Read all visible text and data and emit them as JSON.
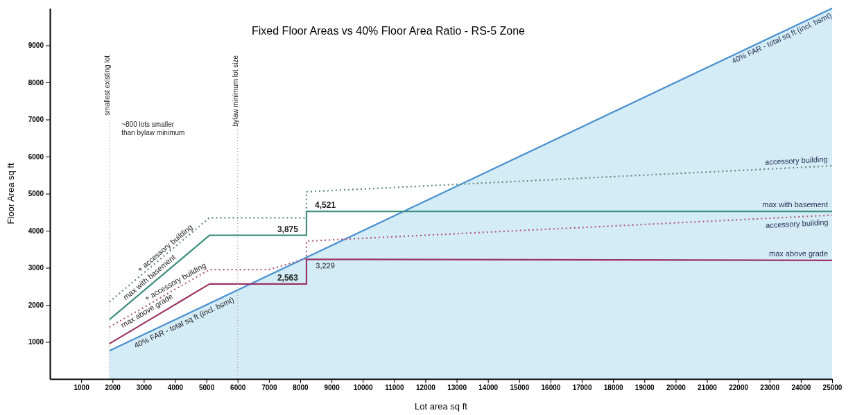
{
  "chart_data": {
    "type": "line",
    "title": "Fixed Floor Areas vs 40% Floor Area Ratio  -  RS-5 Zone",
    "xlabel": "Lot area    sq ft",
    "ylabel": "Floor Area    sq ft",
    "xlim": [
      0,
      25000
    ],
    "ylim": [
      0,
      10000
    ],
    "xticks": [
      1000,
      2000,
      3000,
      4000,
      5000,
      6000,
      7000,
      8000,
      9000,
      10000,
      11000,
      12000,
      13000,
      14000,
      15000,
      16000,
      17000,
      18000,
      19000,
      20000,
      21000,
      22000,
      23000,
      24000,
      25000
    ],
    "yticks": [
      1000,
      2000,
      3000,
      4000,
      5000,
      6000,
      7000,
      8000,
      9000
    ],
    "grid": false,
    "marker": "none",
    "series": [
      {
        "name": "40% FAR - total sq ft (incl. bsmt)",
        "type": "area",
        "color": "#4a8fd0",
        "x": [
          1900,
          25000
        ],
        "values": [
          760,
          10000
        ]
      },
      {
        "name": "accessory building",
        "color": "#5f8878",
        "line_style": "dotted",
        "x": [
          1900,
          5100,
          8200,
          8200,
          25000
        ],
        "values": [
          2080,
          4350,
          4350,
          5050,
          5750
        ]
      },
      {
        "name": "max with basement",
        "color": "#3f8f80",
        "x": [
          1900,
          5100,
          8200,
          8200,
          25000
        ],
        "values": [
          1600,
          3875,
          3875,
          4521,
          4521
        ]
      },
      {
        "name": "accessory building",
        "color": "#b05878",
        "line_style": "dotted",
        "x": [
          1900,
          5100,
          7000,
          8200,
          8200,
          25000
        ],
        "values": [
          1400,
          2950,
          2950,
          3250,
          3720,
          4420
        ]
      },
      {
        "name": "max above grade",
        "color": "#9a3464",
        "x": [
          1900,
          5100,
          8200,
          8200,
          25000
        ],
        "values": [
          950,
          2563,
          2563,
          3229,
          3200
        ]
      }
    ],
    "ref_lines": [
      {
        "axis": "x",
        "value": 1900,
        "label": "smallest existing lot"
      },
      {
        "axis": "x",
        "value": 6000,
        "label": "bylaw minimum lot size"
      }
    ],
    "annotations": [
      "~800 lots smaller than bylaw minimum",
      {
        "text": "3,875",
        "x": 7600,
        "y": 3875
      },
      {
        "text": "2,563",
        "x": 7600,
        "y": 2563
      },
      {
        "text": "4,521",
        "x": 8800,
        "y": 4521
      },
      {
        "text": "3,229",
        "x": 8800,
        "y": 3229
      },
      {
        "text": "+ accessory building",
        "x": 3800,
        "y": 3400
      },
      {
        "text": "max with basement",
        "x": 3300,
        "y": 2620
      },
      {
        "text": "+ accessory building",
        "x": 4100,
        "y": 2480
      },
      {
        "text": "max above grade",
        "x": 3200,
        "y": 1700
      },
      {
        "text": "40% FAR - total sq ft (incl. bsmt)",
        "x": 4200,
        "y": 1680
      }
    ]
  }
}
